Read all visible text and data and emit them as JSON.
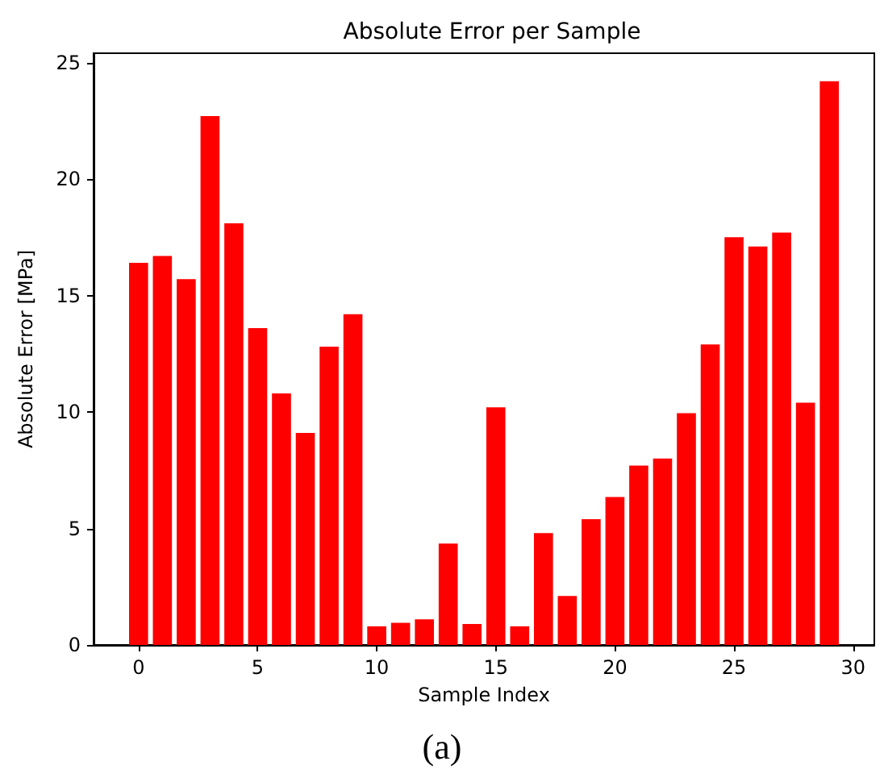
{
  "chart_data": {
    "type": "bar",
    "title": "Absolute Error per Sample",
    "xlabel": "Sample Index",
    "ylabel": "Absolute Error [MPa]",
    "x": [
      0,
      1,
      2,
      3,
      4,
      5,
      6,
      7,
      8,
      9,
      10,
      11,
      12,
      13,
      14,
      15,
      16,
      17,
      18,
      19,
      20,
      21,
      22,
      23,
      24,
      25,
      26,
      27,
      28,
      29
    ],
    "values": [
      16.4,
      16.7,
      15.7,
      22.7,
      18.1,
      13.6,
      10.8,
      9.1,
      12.8,
      14.2,
      0.8,
      0.95,
      1.1,
      4.35,
      0.9,
      10.2,
      0.8,
      4.8,
      2.1,
      5.4,
      6.35,
      7.7,
      8.0,
      9.95,
      12.9,
      17.5,
      17.1,
      17.7,
      10.4,
      24.2
    ],
    "color": "#ff0000",
    "xlim": [
      -1.89,
      30.89
    ],
    "xticks": [
      0,
      5,
      10,
      15,
      20,
      25,
      30
    ],
    "ylim": [
      0,
      25.4
    ],
    "yticks": [
      0,
      5,
      10,
      15,
      20,
      25
    ],
    "grid": false,
    "annotations": [
      "(a)"
    ]
  }
}
